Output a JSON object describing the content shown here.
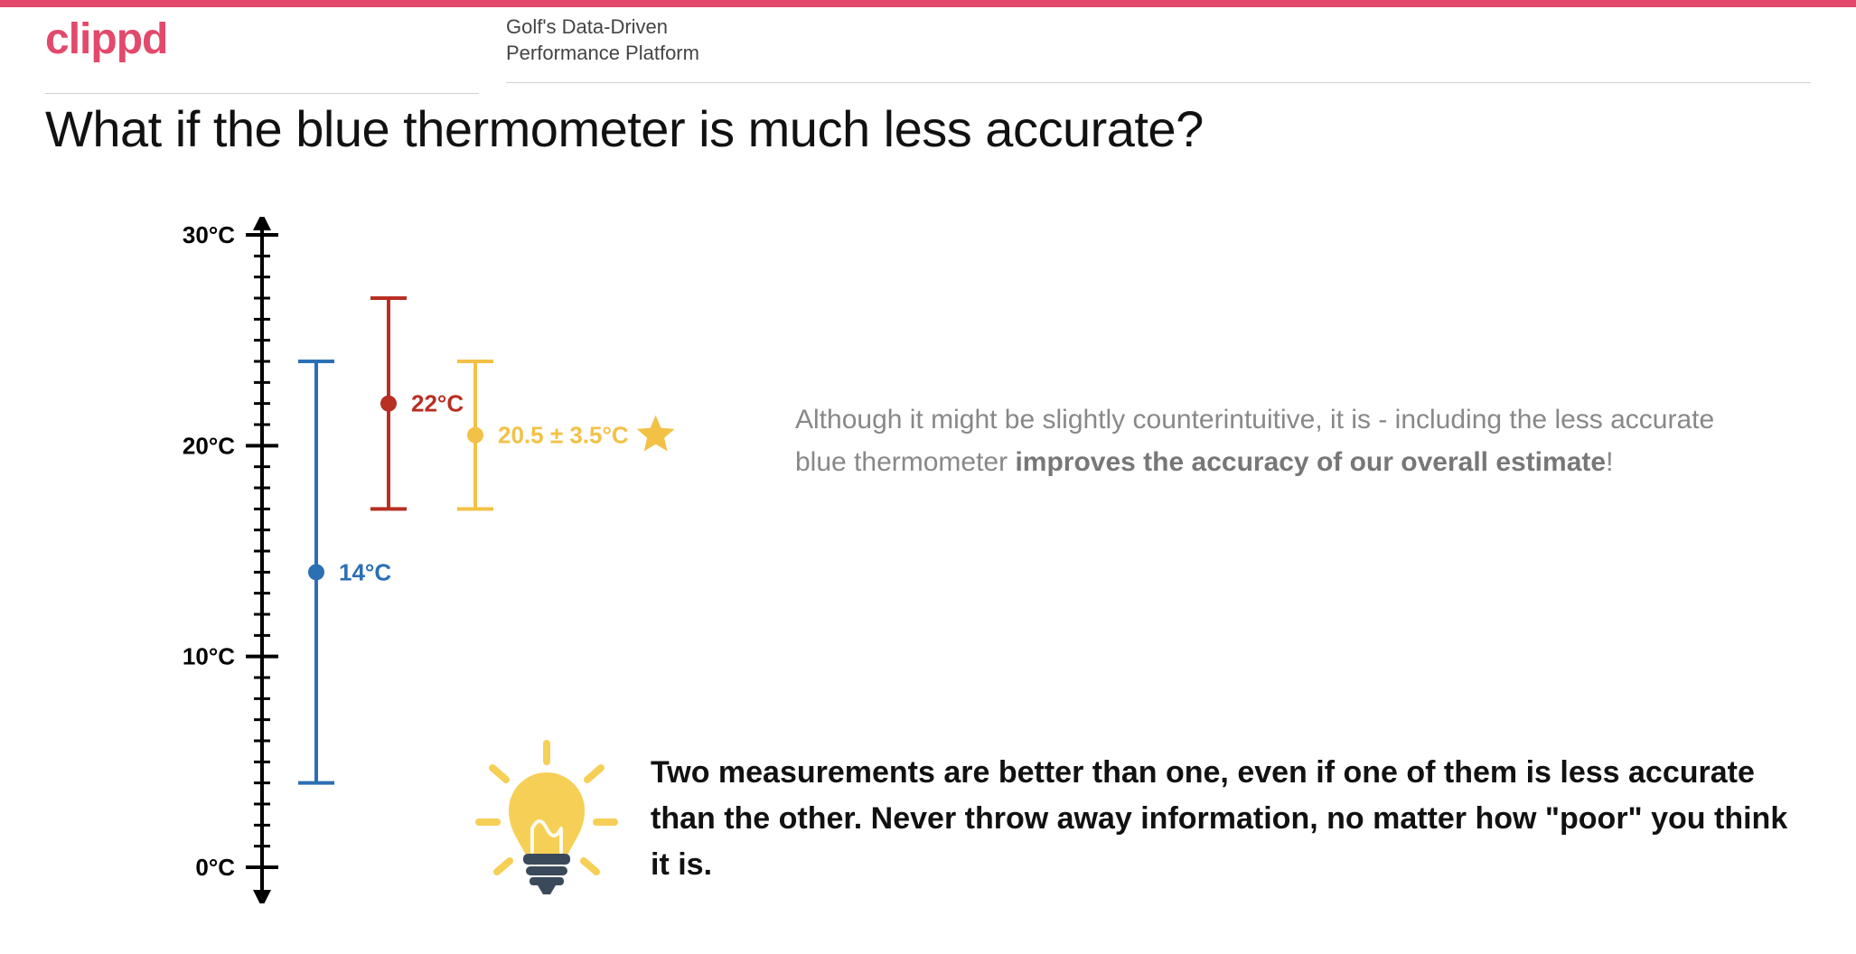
{
  "theme": {
    "accent": "#e2496b",
    "grey_text": "#888888",
    "black_text": "#111111",
    "rule": "#d0d0d0",
    "background": "#ffffff"
  },
  "header": {
    "logo_text": "clippd",
    "logo_color": "#e2496b",
    "tagline_line1": "Golf's Data-Driven",
    "tagline_line2": "Performance Platform"
  },
  "slide": {
    "title": "What if the blue thermometer is much less accurate?"
  },
  "chart": {
    "type": "error-bar",
    "axis": {
      "min": 0,
      "max": 30,
      "major_step": 10,
      "minor_step": 1,
      "unit": "°C",
      "labels": [
        "30°C",
        "20°C",
        "10°C",
        "0°C"
      ],
      "line_color": "#000000",
      "line_width": 4,
      "tick_color": "#000000"
    },
    "series": [
      {
        "name": "blue",
        "x_offset": 1,
        "mean": 14,
        "low": 4,
        "high": 24,
        "color": "#2b6fb5",
        "label": "14°C",
        "label_color": "#2b6fb5"
      },
      {
        "name": "red",
        "x_offset": 2,
        "mean": 22,
        "low": 17,
        "high": 27,
        "color": "#b82f23",
        "label": "22°C",
        "label_color": "#b82f23"
      },
      {
        "name": "yellow",
        "x_offset": 3.2,
        "mean": 20.5,
        "low": 17,
        "high": 24,
        "color": "#f3c146",
        "label": "20.5 ± 3.5°C",
        "label_color": "#f3c146",
        "star": true
      }
    ],
    "bar_line_width": 4,
    "cap_width": 40,
    "dot_radius": 9
  },
  "explanation": {
    "pre": "Although it might be slightly counterintuitive, it is - including the less accurate blue thermometer ",
    "bold": "improves the accuracy of our overall estimate",
    "post": "!"
  },
  "conclusion": {
    "text": "Two measurements are better than one, even if one of them is less accurate than the other. Never throw away information, no matter how \"poor\" you think it is."
  },
  "icons": {
    "star_color": "#f3c146",
    "bulb_glass": "#f6cf56",
    "bulb_base": "#3b4a5a",
    "bulb_rays": "#f6cf56"
  }
}
